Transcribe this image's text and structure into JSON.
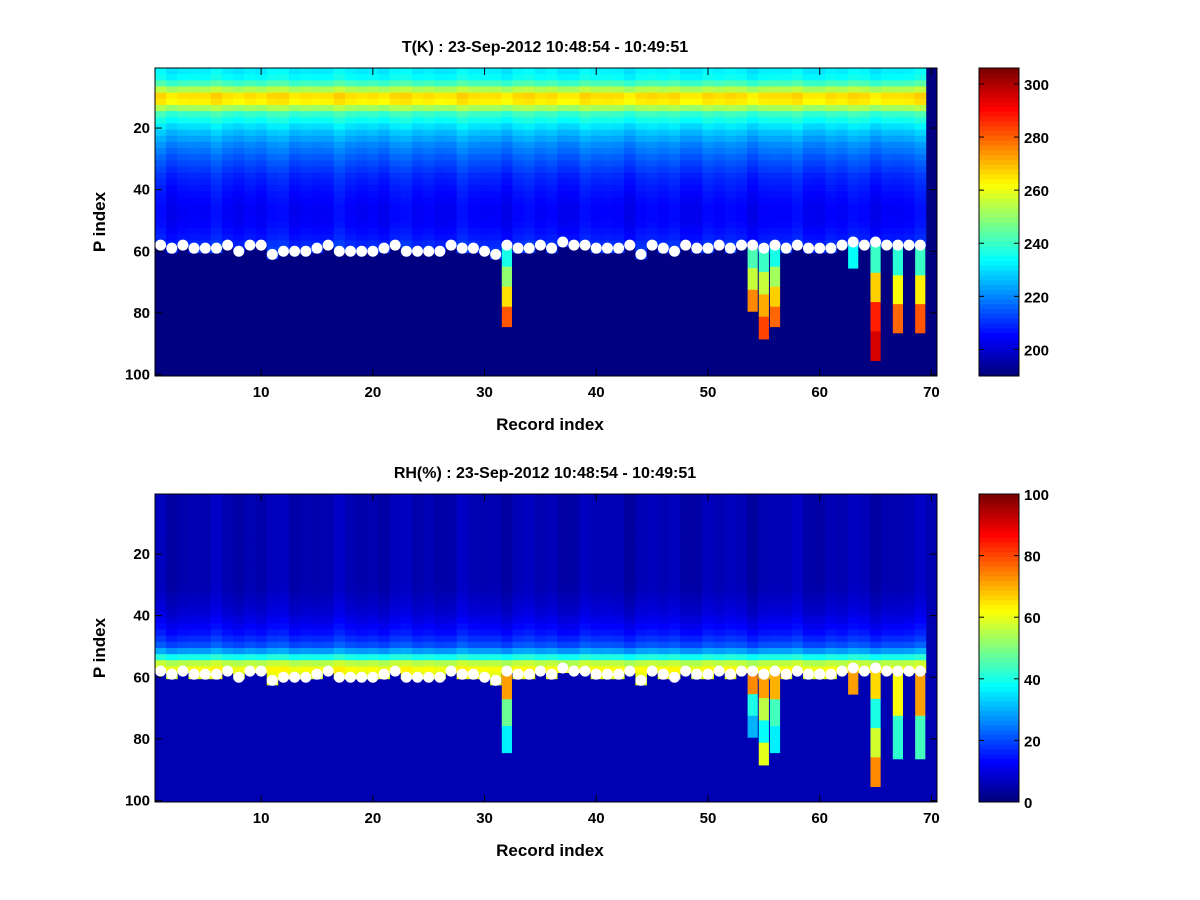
{
  "colormap": "jet",
  "chart_data": [
    {
      "type": "heatmap",
      "title": "T(K) : 23-Sep-2012 10:48:54 - 10:49:51",
      "xlabel": "Record index",
      "ylabel": "P index",
      "xlim": [
        0.5,
        70.5
      ],
      "ylim": [
        0.5,
        100.5
      ],
      "y_reversed": true,
      "xticks": [
        10,
        20,
        30,
        40,
        50,
        60,
        70
      ],
      "yticks": [
        20,
        40,
        60,
        80,
        100
      ],
      "clim": [
        190,
        306
      ],
      "colorbar_ticks": [
        200,
        220,
        240,
        260,
        280,
        300
      ],
      "colorbar_label": "",
      "profile": {
        "p_index": [
          1,
          3,
          6,
          8,
          10,
          12,
          15,
          20,
          25,
          30,
          35,
          40,
          45,
          50,
          55,
          58
        ],
        "value": [
          232,
          234,
          245,
          262,
          270,
          258,
          240,
          228,
          220,
          214,
          209,
          206,
          204,
          204,
          207,
          210
        ]
      },
      "fill_value": 190,
      "extensions": [
        {
          "record": 32,
          "to_p": 84,
          "values_top_to_bottom": [
            236,
            250,
            266,
            282
          ]
        },
        {
          "record": 54,
          "to_p": 79,
          "values_top_to_bottom": [
            242,
            256,
            276
          ]
        },
        {
          "record": 55,
          "to_p": 88,
          "values_top_to_bottom": [
            240,
            256,
            272,
            284
          ]
        },
        {
          "record": 56,
          "to_p": 84,
          "values_top_to_bottom": [
            236,
            252,
            268,
            280
          ]
        },
        {
          "record": 63,
          "to_p": 65,
          "values_top_to_bottom": [
            234
          ]
        },
        {
          "record": 65,
          "to_p": 95,
          "values_top_to_bottom": [
            240,
            268,
            288,
            296
          ]
        },
        {
          "record": 67,
          "to_p": 86,
          "values_top_to_bottom": [
            238,
            262,
            280
          ]
        },
        {
          "record": 69,
          "to_p": 86,
          "values_top_to_bottom": [
            240,
            264,
            282
          ]
        }
      ]
    },
    {
      "type": "heatmap",
      "title": "RH(%) : 23-Sep-2012 10:48:54 - 10:49:51",
      "xlabel": "Record index",
      "ylabel": "P index",
      "xlim": [
        0.5,
        70.5
      ],
      "ylim": [
        0.5,
        100.5
      ],
      "y_reversed": true,
      "xticks": [
        10,
        20,
        30,
        40,
        50,
        60,
        70
      ],
      "yticks": [
        20,
        40,
        60,
        80,
        100
      ],
      "clim": [
        0,
        100
      ],
      "colorbar_ticks": [
        0,
        20,
        40,
        60,
        80,
        100
      ],
      "colorbar_label": "",
      "profile": {
        "p_index": [
          1,
          30,
          38,
          42,
          46,
          50,
          53,
          55,
          57,
          58
        ],
        "value": [
          5,
          5,
          8,
          11,
          15,
          22,
          40,
          56,
          62,
          60
        ]
      },
      "fill_value": 5,
      "extensions": [
        {
          "record": 32,
          "to_p": 84,
          "values_top_to_bottom": [
            72,
            48,
            36
          ]
        },
        {
          "record": 54,
          "to_p": 79,
          "values_top_to_bottom": [
            74,
            40,
            30
          ]
        },
        {
          "record": 55,
          "to_p": 88,
          "values_top_to_bottom": [
            72,
            56,
            38,
            60
          ]
        },
        {
          "record": 56,
          "to_p": 84,
          "values_top_to_bottom": [
            70,
            44,
            36
          ]
        },
        {
          "record": 63,
          "to_p": 65,
          "values_top_to_bottom": [
            72
          ]
        },
        {
          "record": 65,
          "to_p": 95,
          "values_top_to_bottom": [
            66,
            40,
            58,
            74
          ]
        },
        {
          "record": 67,
          "to_p": 86,
          "values_top_to_bottom": [
            62,
            42
          ]
        },
        {
          "record": 69,
          "to_p": 86,
          "values_top_to_bottom": [
            72,
            44
          ]
        }
      ]
    }
  ],
  "surface_markers": {
    "marker_color": "#ffffff",
    "records": [
      1,
      2,
      3,
      4,
      5,
      6,
      7,
      8,
      9,
      10,
      11,
      12,
      13,
      14,
      15,
      16,
      17,
      18,
      19,
      20,
      21,
      22,
      23,
      24,
      25,
      26,
      27,
      28,
      29,
      30,
      31,
      32,
      33,
      34,
      35,
      36,
      37,
      38,
      39,
      40,
      41,
      42,
      43,
      44,
      45,
      46,
      47,
      48,
      49,
      50,
      51,
      52,
      53,
      54,
      55,
      56,
      57,
      58,
      59,
      60,
      61,
      62,
      63,
      64,
      65,
      66,
      67,
      68,
      69
    ],
    "p_index": [
      58,
      59,
      58,
      59,
      59,
      59,
      58,
      60,
      58,
      58,
      61,
      60,
      60,
      60,
      59,
      58,
      60,
      60,
      60,
      60,
      59,
      58,
      60,
      60,
      60,
      60,
      58,
      59,
      59,
      60,
      61,
      58,
      59,
      59,
      58,
      59,
      57,
      58,
      58,
      59,
      59,
      59,
      58,
      61,
      58,
      59,
      60,
      58,
      59,
      59,
      58,
      59,
      58,
      58,
      59,
      58,
      59,
      58,
      59,
      59,
      59,
      58,
      57,
      58,
      57,
      58,
      58,
      58,
      58
    ]
  }
}
